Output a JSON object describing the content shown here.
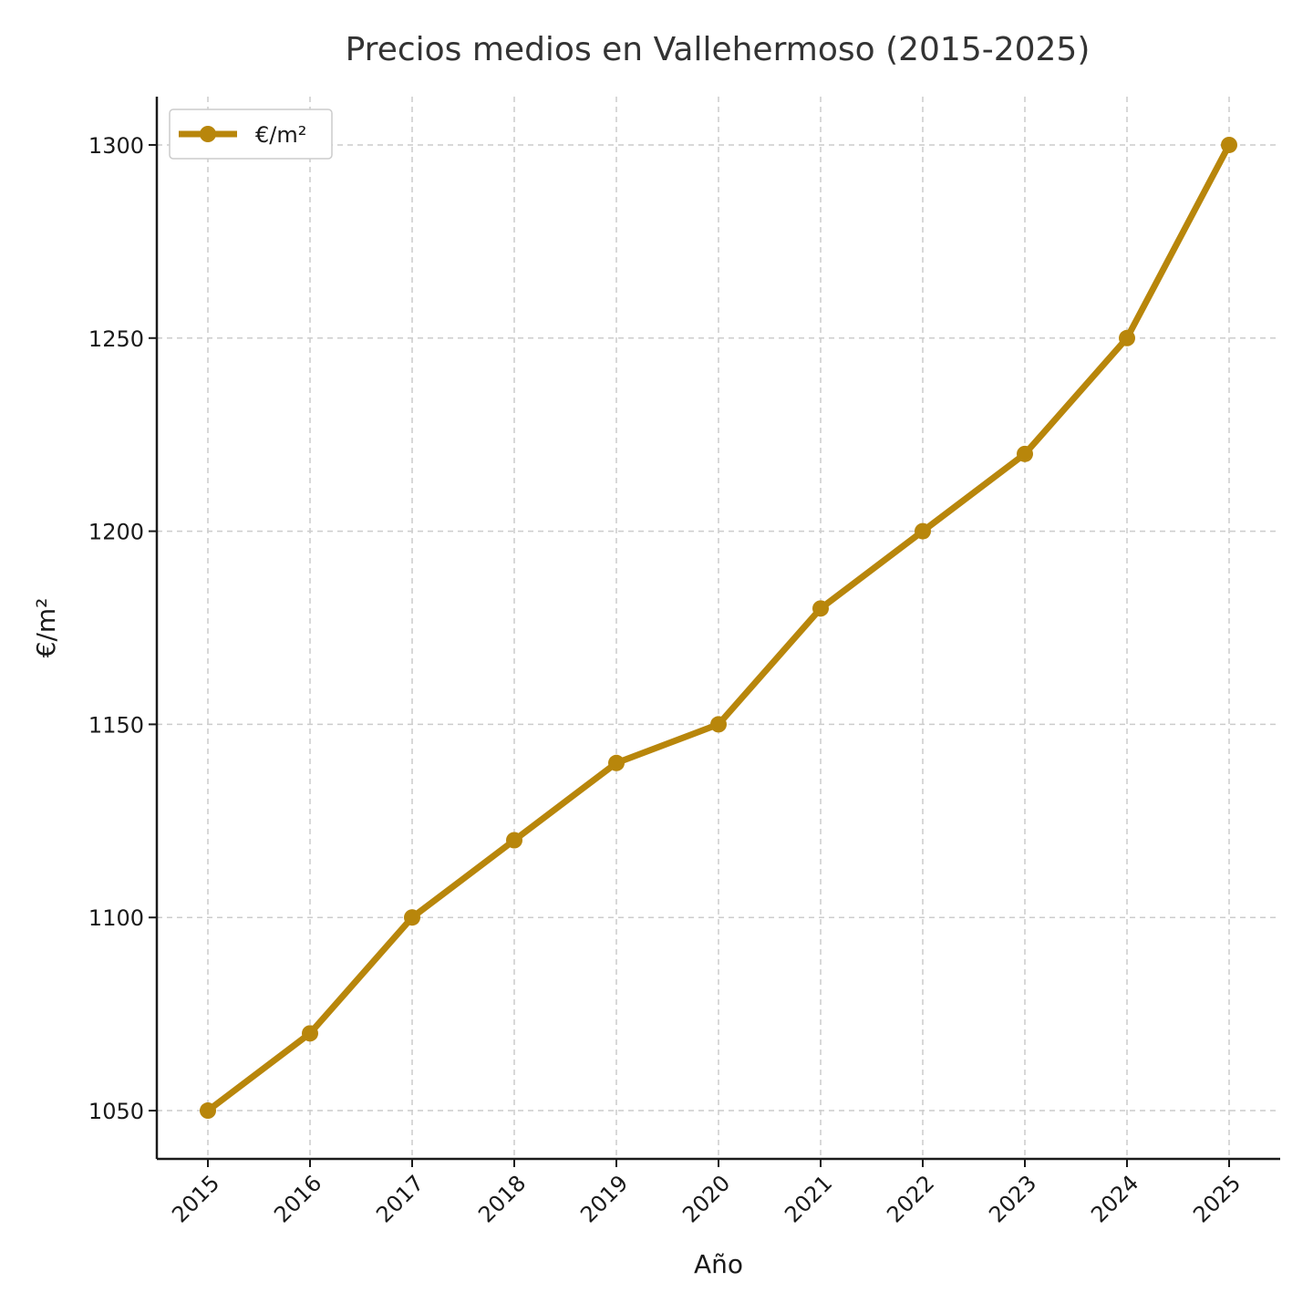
{
  "chart_data": {
    "type": "line",
    "title": "Precios medios en Vallehermoso (2015-2025)",
    "xlabel": "Año",
    "ylabel": "€/m²",
    "categories": [
      "2015",
      "2016",
      "2017",
      "2018",
      "2019",
      "2020",
      "2021",
      "2022",
      "2023",
      "2024",
      "2025"
    ],
    "series": [
      {
        "name": "€/m²",
        "values": [
          1050,
          1070,
          1100,
          1120,
          1140,
          1150,
          1180,
          1200,
          1220,
          1250,
          1300
        ],
        "color": "#b8860b"
      }
    ],
    "yticks": [
      1050,
      1100,
      1150,
      1200,
      1250,
      1300
    ],
    "ylim": [
      1037.5,
      1312.5
    ],
    "grid": true,
    "legend_position": "top-left"
  }
}
